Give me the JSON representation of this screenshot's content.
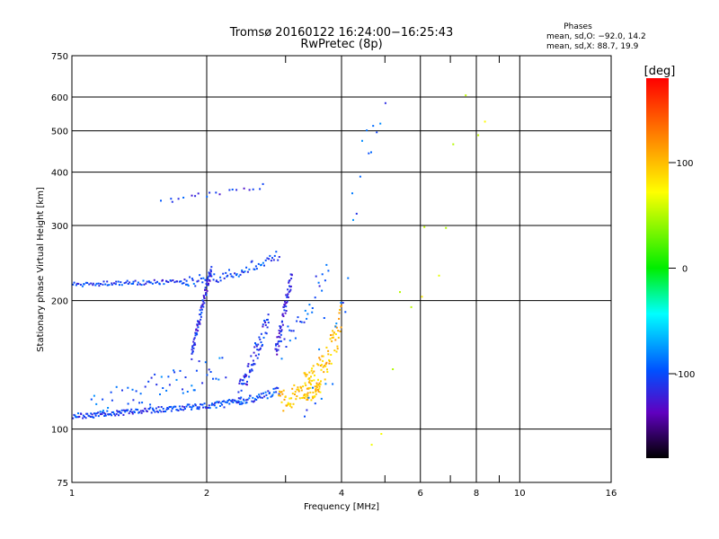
{
  "chart_data": {
    "type": "scatter",
    "title": "Tromsø 20160122 16:24:00−16:25:43",
    "subtitle": "RwPretec (8p)",
    "xlabel": "Frequency [MHz]",
    "ylabel": "Stationary phase Virtual Height [km]",
    "x_scale": "log",
    "y_scale": "log",
    "xlim": [
      1,
      16
    ],
    "ylim": [
      75,
      750
    ],
    "x_ticks": [
      1,
      2,
      4,
      6,
      8,
      10,
      16
    ],
    "x_minor": [
      3,
      5,
      7,
      9
    ],
    "y_ticks": [
      75,
      100,
      200,
      300,
      400,
      500,
      600,
      750
    ],
    "grid": true,
    "stats": {
      "heading": "Phases",
      "line_o": "mean, sd,O: −92.0, 14.2",
      "line_x": "mean, sd,X: 88.7, 19.9"
    },
    "colorbar": {
      "label": "[deg]",
      "range": [
        -180,
        180
      ],
      "ticks": [
        100,
        0,
        -100
      ],
      "placement": "right"
    },
    "traces": [
      {
        "x0": 1.0,
        "x1": 2.1,
        "h0": 107,
        "h1": 114,
        "curve": 1.0,
        "phase": -105,
        "n": 150,
        "scatter": 0.015
      },
      {
        "x0": 2.1,
        "x1": 2.9,
        "h0": 114,
        "h1": 123,
        "curve": 1.5,
        "phase": -100,
        "n": 70,
        "scatter": 0.02
      },
      {
        "x0": 2.9,
        "x1": 3.6,
        "h0": 116,
        "h1": 128,
        "curve": 1.2,
        "phase": 95,
        "n": 70,
        "scatter": 0.06
      },
      {
        "x0": 3.3,
        "x1": 4.0,
        "h0": 125,
        "h1": 180,
        "curve": 1.8,
        "phase": 100,
        "n": 90,
        "scatter": 0.09
      },
      {
        "x0": 1.0,
        "x1": 1.8,
        "h0": 218,
        "h1": 222,
        "curve": 1.0,
        "phase": -105,
        "n": 80,
        "scatter": 0.012
      },
      {
        "x0": 1.8,
        "x1": 2.9,
        "h0": 222,
        "h1": 255,
        "curve": 1.6,
        "phase": -100,
        "n": 70,
        "scatter": 0.03
      },
      {
        "x0": 1.6,
        "x1": 2.7,
        "h0": 340,
        "h1": 372,
        "curve": 1.0,
        "phase": -110,
        "n": 20,
        "scatter": 0.015
      },
      {
        "x0": 1.85,
        "x1": 2.05,
        "h0": 150,
        "h1": 240,
        "curve": 1.0,
        "phase": -115,
        "n": 80,
        "scatter": 0.035
      },
      {
        "x0": 2.35,
        "x1": 2.75,
        "h0": 120,
        "h1": 180,
        "curve": 1.0,
        "phase": -110,
        "n": 70,
        "scatter": 0.06
      },
      {
        "x0": 2.85,
        "x1": 3.1,
        "h0": 150,
        "h1": 230,
        "curve": 1.0,
        "phase": -120,
        "n": 60,
        "scatter": 0.05
      },
      {
        "x0": 1.1,
        "x1": 2.2,
        "h0": 112,
        "h1": 140,
        "curve": 1.0,
        "phase": -95,
        "n": 60,
        "scatter": 0.08
      },
      {
        "x0": 2.9,
        "x1": 3.7,
        "h0": 150,
        "h1": 230,
        "curve": 1.0,
        "phase": -100,
        "n": 30,
        "scatter": 0.08
      },
      {
        "x0": 3.3,
        "x1": 5.0,
        "h0": 90,
        "h1": 650,
        "curve": 1.0,
        "phase": -95,
        "n": 30,
        "scatter": 0.35
      },
      {
        "x0": 4.5,
        "x1": 8.3,
        "h0": 90,
        "h1": 620,
        "curve": 1.0,
        "phase": 60,
        "n": 14,
        "scatter": 0.3
      }
    ]
  }
}
